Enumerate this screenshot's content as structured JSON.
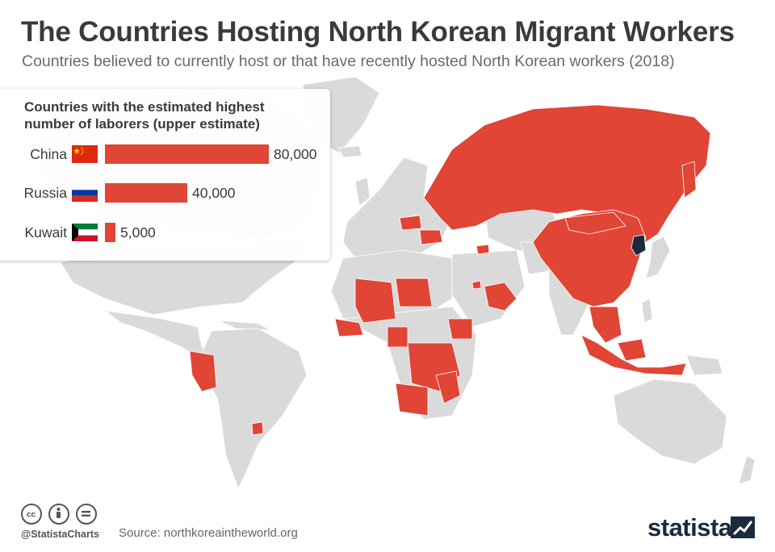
{
  "header": {
    "title": "The Countries Hosting North Korean Migrant Workers",
    "subtitle": "Countries believed to currently host or that have recently hosted North Korean workers (2018)"
  },
  "panel": {
    "title": "Countries with the estimated highest number of laborers (upper estimate)"
  },
  "chart_data": {
    "type": "bar",
    "orientation": "horizontal",
    "title": "Countries with the estimated highest number of laborers (upper estimate)",
    "categories": [
      "China",
      "Russia",
      "Kuwait"
    ],
    "values": [
      80000,
      40000,
      5000
    ],
    "value_labels": [
      "80,000",
      "40,000",
      "5,000"
    ],
    "xlim": [
      0,
      80000
    ],
    "bar_color": "#e04535",
    "grid": false,
    "legend": "none"
  },
  "map": {
    "highlight_color": "#e04535",
    "north_korea_color": "#1b2a3d",
    "base_color": "#dadada"
  },
  "footer": {
    "handle": "@StatistaCharts",
    "source": "Source: northkoreaintheworld.org",
    "brand": "statista",
    "icons": [
      "cc-icon",
      "attribution-icon",
      "no-derivatives-icon"
    ]
  }
}
